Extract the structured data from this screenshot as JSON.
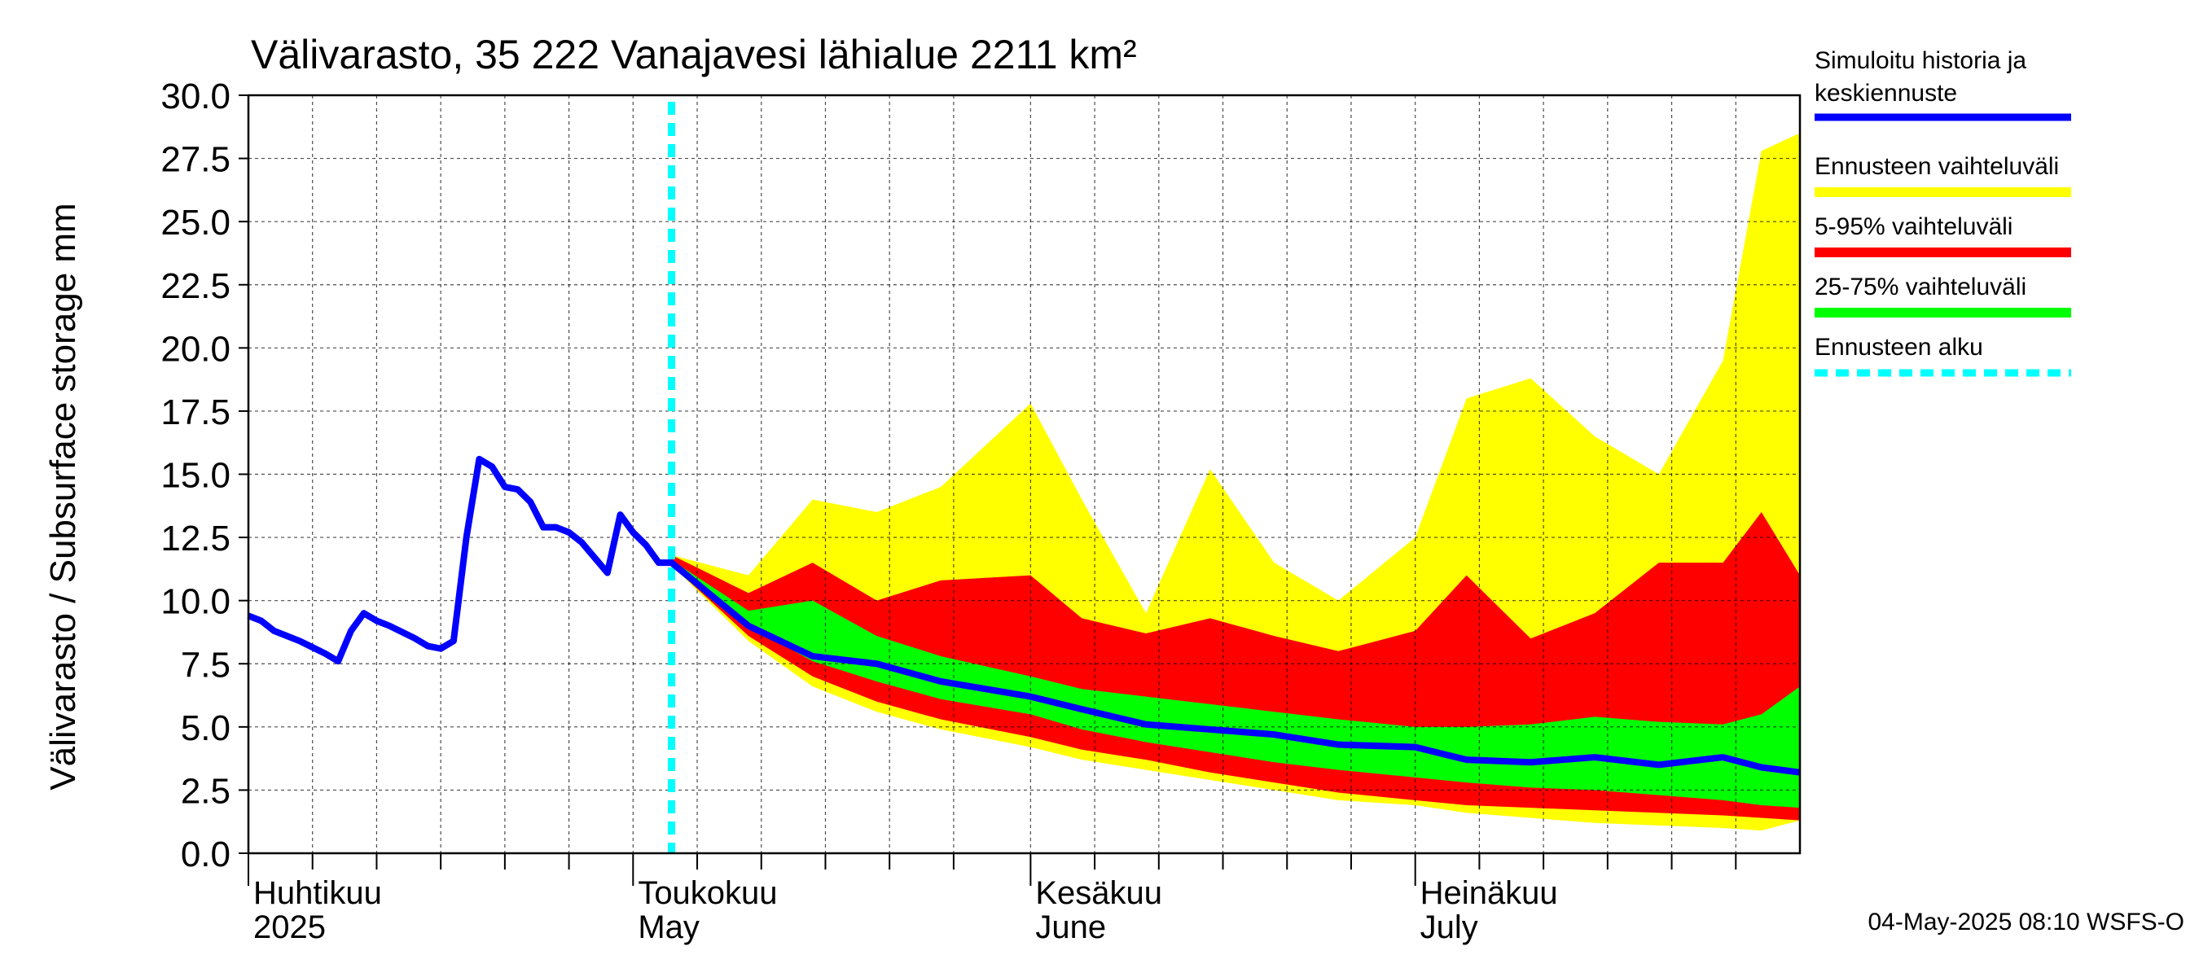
{
  "chart_data": {
    "type": "area",
    "title": "Välivarasto, 35 222 Vanajavesi lähialue 2211 km²",
    "ylabel": "Välivarasto / Subsurface storage  mm",
    "ylim": [
      0,
      30
    ],
    "y_ticks": [
      "0.0",
      "2.5",
      "5.0",
      "7.5",
      "10.0",
      "12.5",
      "15.0",
      "17.5",
      "20.0",
      "22.5",
      "25.0",
      "27.5",
      "30.0"
    ],
    "x_range": [
      "2025-04-01",
      "2025-07-31"
    ],
    "forecast_start": "2025-05-04",
    "grid": true,
    "legend_placement": "right",
    "months": [
      {
        "label1": "Huhtikuu",
        "label2": "2025",
        "date": "2025-04-01"
      },
      {
        "label1": "Toukokuu",
        "label2": "May",
        "date": "2025-05-01"
      },
      {
        "label1": "Kesäkuu",
        "label2": "June",
        "date": "2025-06-01"
      },
      {
        "label1": "Heinäkuu",
        "label2": "July",
        "date": "2025-07-01"
      }
    ],
    "history": {
      "name": "Simuloitu historia ja keskiennuste",
      "color": "#0000ff",
      "dates": [
        "2025-04-01",
        "2025-04-02",
        "2025-04-03",
        "2025-04-05",
        "2025-04-07",
        "2025-04-08",
        "2025-04-09",
        "2025-04-10",
        "2025-04-11",
        "2025-04-12",
        "2025-04-14",
        "2025-04-15",
        "2025-04-16",
        "2025-04-17",
        "2025-04-18",
        "2025-04-19",
        "2025-04-20",
        "2025-04-21",
        "2025-04-22",
        "2025-04-23",
        "2025-04-24",
        "2025-04-25",
        "2025-04-26",
        "2025-04-27",
        "2025-04-28",
        "2025-04-29",
        "2025-04-30",
        "2025-05-01",
        "2025-05-02",
        "2025-05-03",
        "2025-05-04"
      ],
      "values": [
        9.4,
        9.2,
        8.8,
        8.4,
        7.9,
        7.6,
        8.8,
        9.5,
        9.2,
        9.0,
        8.5,
        8.2,
        8.1,
        8.4,
        12.5,
        15.6,
        15.3,
        14.5,
        14.4,
        13.9,
        12.9,
        12.9,
        12.7,
        12.3,
        11.7,
        11.1,
        13.4,
        12.7,
        12.2,
        11.5,
        11.5
      ]
    },
    "forecast": {
      "dates": [
        "2025-05-04",
        "2025-05-10",
        "2025-05-15",
        "2025-05-20",
        "2025-05-25",
        "2025-06-01",
        "2025-06-05",
        "2025-06-10",
        "2025-06-15",
        "2025-06-20",
        "2025-06-25",
        "2025-07-01",
        "2025-07-05",
        "2025-07-10",
        "2025-07-15",
        "2025-07-20",
        "2025-07-25",
        "2025-07-28",
        "2025-07-31"
      ],
      "series": [
        {
          "name": "Ennusteen vaihteluväli",
          "color": "#ffff00",
          "low": [
            11.4,
            8.4,
            6.6,
            5.6,
            4.9,
            4.2,
            3.7,
            3.3,
            2.9,
            2.5,
            2.1,
            1.9,
            1.6,
            1.4,
            1.2,
            1.1,
            1.0,
            0.9,
            1.3
          ],
          "high": [
            11.8,
            11.0,
            14.0,
            13.5,
            14.5,
            17.8,
            14.0,
            9.5,
            15.2,
            11.5,
            10.0,
            12.5,
            18.0,
            18.8,
            16.5,
            15.0,
            19.5,
            27.8,
            28.5
          ]
        },
        {
          "name": "5-95% vaihteluväli",
          "color": "#ff0000",
          "low": [
            11.4,
            8.6,
            7.0,
            6.0,
            5.3,
            4.6,
            4.1,
            3.7,
            3.2,
            2.8,
            2.4,
            2.1,
            1.9,
            1.8,
            1.7,
            1.6,
            1.5,
            1.4,
            1.3
          ],
          "high": [
            11.8,
            10.3,
            11.5,
            10.0,
            10.8,
            11.0,
            9.3,
            8.7,
            9.3,
            8.6,
            8.0,
            8.8,
            11.0,
            8.5,
            9.5,
            11.5,
            11.5,
            13.5,
            11.0
          ]
        },
        {
          "name": "25-75% vaihteluväli",
          "color": "#00ff00",
          "low": [
            11.5,
            9.0,
            7.6,
            6.8,
            6.1,
            5.5,
            4.9,
            4.4,
            4.0,
            3.6,
            3.3,
            3.0,
            2.8,
            2.6,
            2.5,
            2.3,
            2.1,
            1.9,
            1.8
          ],
          "high": [
            11.6,
            9.6,
            10.0,
            8.6,
            7.8,
            7.0,
            6.5,
            6.2,
            5.9,
            5.6,
            5.3,
            5.0,
            5.0,
            5.1,
            5.4,
            5.2,
            5.1,
            5.5,
            6.6
          ]
        }
      ],
      "median": [
        11.5,
        9.0,
        7.8,
        7.5,
        6.8,
        6.2,
        5.7,
        5.1,
        4.9,
        4.7,
        4.3,
        4.2,
        3.7,
        3.6,
        3.8,
        3.5,
        3.8,
        3.4,
        3.2
      ]
    },
    "legend": [
      {
        "label": "Simuloitu historia ja keskiennuste",
        "line1": "Simuloitu historia ja",
        "line2": "keskiennuste",
        "color": "#0000ff",
        "style": "solid"
      },
      {
        "label": "Ennusteen vaihteluväli",
        "color": "#ffff00",
        "style": "solid"
      },
      {
        "label": "5-95% vaihteluväli",
        "color": "#ff0000",
        "style": "solid"
      },
      {
        "label": "25-75% vaihteluväli",
        "color": "#00ff00",
        "style": "solid"
      },
      {
        "label": "Ennusteen alku",
        "color": "#00ffff",
        "style": "dashed"
      }
    ],
    "footer": "04-May-2025 08:10 WSFS-O"
  }
}
